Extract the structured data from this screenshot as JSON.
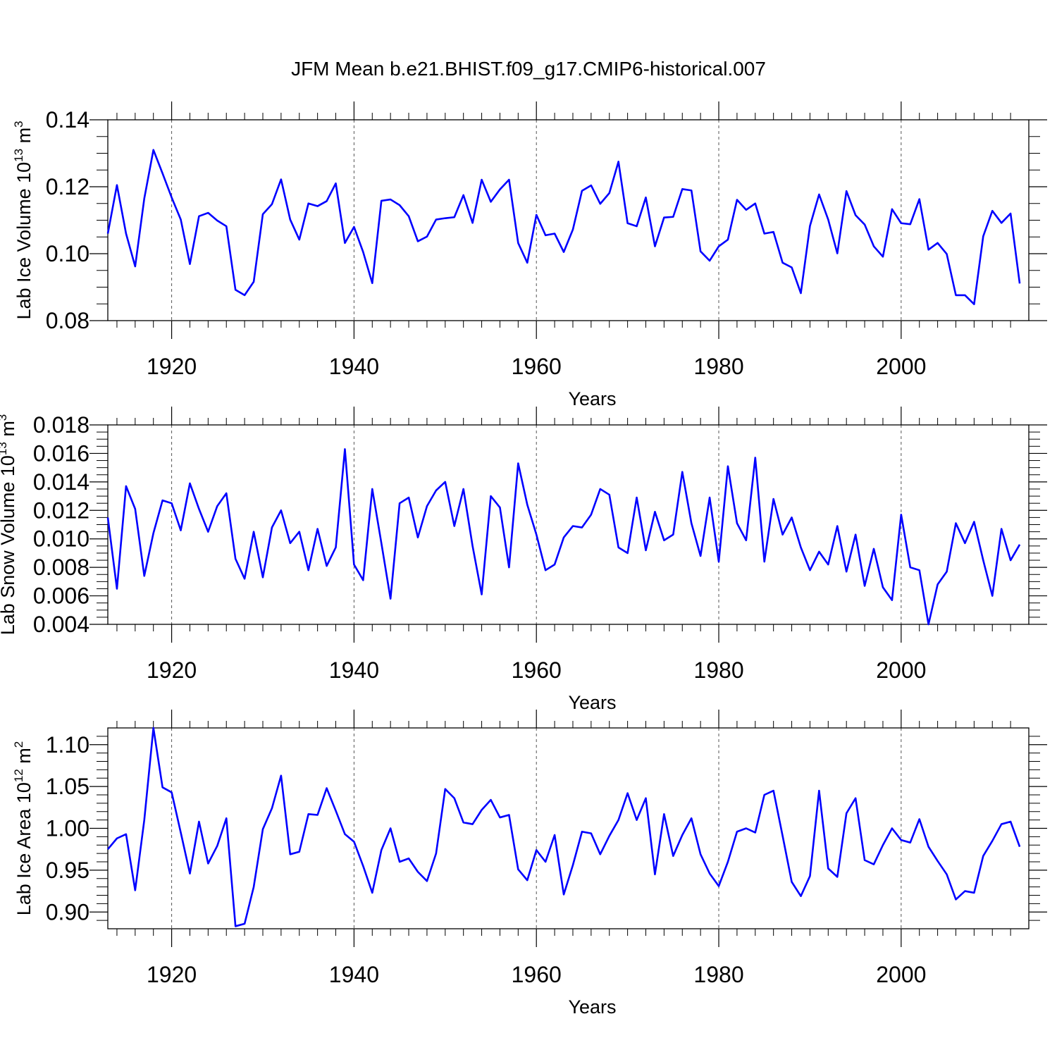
{
  "title": "JFM Mean b.e21.BHIST.f09_g17.CMIP6-historical.007",
  "colors": {
    "line": "#0000ff",
    "axis": "#000000",
    "grid": "#555555"
  },
  "chart_data": [
    {
      "type": "line",
      "ylabel_main": "Lab Ice Volume 10",
      "ylabel_exp": "13",
      "ylabel_unit": " m",
      "ylabel_unit_exp": "3",
      "xlabel": "Years",
      "xlim": [
        1913,
        2014
      ],
      "ylim": [
        0.08,
        0.14
      ],
      "x_ticks": [
        1920,
        1940,
        1960,
        1980,
        2000
      ],
      "x_tick_labels": [
        "1920",
        "1940",
        "1960",
        "1980",
        "2000"
      ],
      "y_ticks": [
        0.08,
        0.1,
        0.12,
        0.14
      ],
      "y_tick_labels": [
        "0.08",
        "0.10",
        "0.12",
        "0.14"
      ],
      "y_minor_step": 0.005,
      "grid": "vertical-dashed",
      "series": [
        {
          "name": "Lab Ice Volume",
          "x_start": 1913,
          "values": [
            0.106,
            0.1205,
            0.106,
            0.0962,
            0.1165,
            0.131,
            0.124,
            0.1168,
            0.1102,
            0.0969,
            0.1112,
            0.1122,
            0.1099,
            0.1082,
            0.0892,
            0.0876,
            0.0916,
            0.1118,
            0.1148,
            0.1222,
            0.1102,
            0.1042,
            0.115,
            0.1142,
            0.1157,
            0.121,
            0.1032,
            0.108,
            0.1005,
            0.0912,
            0.1158,
            0.1162,
            0.1145,
            0.1112,
            0.1037,
            0.1051,
            0.1102,
            0.1106,
            0.1109,
            0.1175,
            0.1092,
            0.1221,
            0.1155,
            0.1192,
            0.1221,
            0.1032,
            0.0973,
            0.1116,
            0.1055,
            0.106,
            0.1005,
            0.1072,
            0.1188,
            0.1204,
            0.1149,
            0.1181,
            0.1275,
            0.1091,
            0.1082,
            0.1168,
            0.1022,
            0.1108,
            0.111,
            0.1193,
            0.1189,
            0.1007,
            0.0979,
            0.1022,
            0.1042,
            0.1161,
            0.1131,
            0.115,
            0.106,
            0.1065,
            0.0973,
            0.0959,
            0.0882,
            0.1083,
            0.1177,
            0.1102,
            0.1001,
            0.1187,
            0.1115,
            0.1087,
            0.1022,
            0.0991,
            0.1133,
            0.1091,
            0.1088,
            0.1163,
            0.1012,
            0.1032,
            0.0999,
            0.0876,
            0.0876,
            0.0849,
            0.1052,
            0.1128,
            0.1092,
            0.112,
            0.0911
          ]
        }
      ]
    },
    {
      "type": "line",
      "ylabel_main": "Lab Snow Volume 10",
      "ylabel_exp": "13",
      "ylabel_unit": " m",
      "ylabel_unit_exp": "3",
      "xlabel": "Years",
      "xlim": [
        1913,
        2014
      ],
      "ylim": [
        0.004,
        0.018
      ],
      "x_ticks": [
        1920,
        1940,
        1960,
        1980,
        2000
      ],
      "x_tick_labels": [
        "1920",
        "1940",
        "1960",
        "1980",
        "2000"
      ],
      "y_ticks": [
        0.004,
        0.006,
        0.008,
        0.01,
        0.012,
        0.014,
        0.016,
        0.018
      ],
      "y_tick_labels": [
        "0.004",
        "0.006",
        "0.008",
        "0.010",
        "0.012",
        "0.014",
        "0.016",
        "0.018"
      ],
      "y_minor_step": 0.0005,
      "grid": "vertical-dashed",
      "series": [
        {
          "name": "Lab Snow Volume",
          "x_start": 1913,
          "values": [
            0.0115,
            0.0065,
            0.0137,
            0.0121,
            0.0074,
            0.0104,
            0.0127,
            0.0125,
            0.0106,
            0.0139,
            0.0121,
            0.0105,
            0.0123,
            0.0132,
            0.0086,
            0.0072,
            0.0105,
            0.0073,
            0.0108,
            0.012,
            0.0097,
            0.0105,
            0.0078,
            0.0107,
            0.0081,
            0.0094,
            0.0163,
            0.0082,
            0.0071,
            0.0135,
            0.0097,
            0.0058,
            0.0125,
            0.0129,
            0.0101,
            0.0123,
            0.0134,
            0.014,
            0.0109,
            0.0135,
            0.0095,
            0.0061,
            0.013,
            0.0122,
            0.008,
            0.0153,
            0.0124,
            0.0103,
            0.0078,
            0.0082,
            0.0101,
            0.0109,
            0.0108,
            0.0117,
            0.0135,
            0.0131,
            0.0094,
            0.009,
            0.0129,
            0.0092,
            0.0119,
            0.0099,
            0.0103,
            0.0147,
            0.0111,
            0.0088,
            0.0129,
            0.0084,
            0.0151,
            0.0111,
            0.0099,
            0.0157,
            0.0084,
            0.0128,
            0.0103,
            0.0115,
            0.0094,
            0.0078,
            0.0091,
            0.0082,
            0.0109,
            0.0077,
            0.0103,
            0.0067,
            0.0093,
            0.0066,
            0.0057,
            0.0117,
            0.008,
            0.0078,
            0.004,
            0.0068,
            0.0077,
            0.0111,
            0.0097,
            0.0112,
            0.0085,
            0.006,
            0.0107,
            0.0085,
            0.0096
          ]
        }
      ]
    },
    {
      "type": "line",
      "ylabel_main": "Lab Ice Area 10",
      "ylabel_exp": "12",
      "ylabel_unit": " m",
      "ylabel_unit_exp": "2",
      "xlabel": "Years",
      "xlim": [
        1913,
        2014
      ],
      "ylim": [
        0.88,
        1.12
      ],
      "x_ticks": [
        1920,
        1940,
        1960,
        1980,
        2000
      ],
      "x_tick_labels": [
        "1920",
        "1940",
        "1960",
        "1980",
        "2000"
      ],
      "y_ticks": [
        0.9,
        0.95,
        1.0,
        1.05,
        1.1
      ],
      "y_tick_labels": [
        "0.90",
        "0.95",
        "1.00",
        "1.05",
        "1.10"
      ],
      "y_minor_step": 0.01,
      "grid": "vertical-dashed",
      "series": [
        {
          "name": "Lab Ice Area",
          "x_start": 1913,
          "values": [
            0.975,
            0.988,
            0.993,
            0.926,
            1.01,
            1.12,
            1.049,
            1.043,
            0.995,
            0.946,
            1.008,
            0.958,
            0.979,
            1.012,
            0.883,
            0.886,
            0.93,
            0.999,
            1.024,
            1.063,
            0.969,
            0.972,
            1.017,
            1.016,
            1.048,
            1.021,
            0.993,
            0.984,
            0.955,
            0.923,
            0.974,
            1.0,
            0.96,
            0.964,
            0.948,
            0.937,
            0.97,
            1.047,
            1.036,
            1.007,
            1.005,
            1.022,
            1.034,
            1.013,
            1.016,
            0.951,
            0.938,
            0.974,
            0.96,
            0.992,
            0.921,
            0.956,
            0.996,
            0.994,
            0.969,
            0.991,
            1.01,
            1.042,
            1.01,
            1.036,
            0.945,
            1.017,
            0.967,
            0.992,
            1.012,
            0.969,
            0.946,
            0.931,
            0.96,
            0.996,
            1.0,
            0.995,
            1.04,
            1.045,
            0.991,
            0.936,
            0.919,
            0.943,
            1.045,
            0.952,
            0.942,
            1.018,
            1.036,
            0.962,
            0.957,
            0.98,
            1.0,
            0.986,
            0.983,
            1.011,
            0.978,
            0.961,
            0.945,
            0.915,
            0.925,
            0.923,
            0.967,
            0.985,
            1.005,
            1.008,
            0.978
          ]
        }
      ]
    }
  ]
}
